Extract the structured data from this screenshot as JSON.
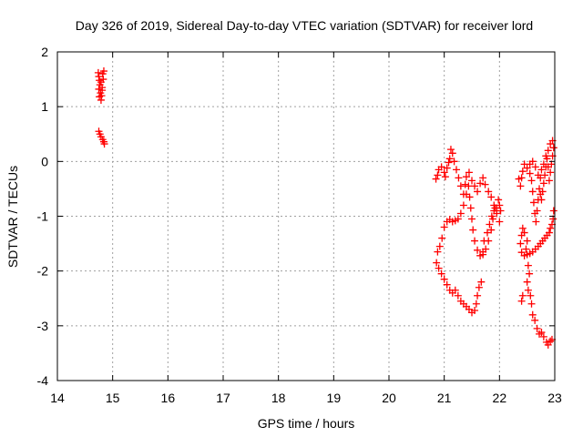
{
  "chart_data": {
    "type": "scatter",
    "title": "Day 326 of 2019, Sidereal Day-to-day VTEC variation (SDTVAR) for receiver lord",
    "xlabel": "GPS time / hours",
    "ylabel": "SDTVAR / TECUs",
    "xlim": [
      14,
      23
    ],
    "ylim": [
      -4,
      2
    ],
    "xticks": [
      "14",
      "15",
      "16",
      "17",
      "18",
      "19",
      "20",
      "21",
      "22",
      "23"
    ],
    "yticks": [
      "2",
      "1",
      "0",
      "-1",
      "-2",
      "-3",
      "-4"
    ],
    "grid": true,
    "marker": "plus",
    "color": "#ff0000",
    "series": [
      {
        "points": [
          [
            14.74,
            1.62
          ],
          [
            14.75,
            1.55
          ],
          [
            14.76,
            1.48
          ],
          [
            14.77,
            1.4
          ],
          [
            14.75,
            1.32
          ],
          [
            14.78,
            1.25
          ],
          [
            14.76,
            1.18
          ],
          [
            14.79,
            1.12
          ],
          [
            14.8,
            1.2
          ],
          [
            14.81,
            1.3
          ],
          [
            14.79,
            1.45
          ],
          [
            14.82,
            1.6
          ],
          [
            14.84,
            1.65
          ],
          [
            14.83,
            1.5
          ],
          [
            14.81,
            1.35
          ],
          [
            14.75,
            0.55
          ],
          [
            14.77,
            0.5
          ],
          [
            14.79,
            0.45
          ],
          [
            14.82,
            0.4
          ],
          [
            14.84,
            0.36
          ],
          [
            14.85,
            0.32
          ],
          [
            20.85,
            -0.32
          ],
          [
            20.88,
            -0.25
          ],
          [
            20.9,
            -0.15
          ],
          [
            20.95,
            -0.1
          ],
          [
            21.0,
            -0.2
          ],
          [
            21.02,
            -0.28
          ],
          [
            21.05,
            -0.12
          ],
          [
            21.08,
            -0.02
          ],
          [
            21.1,
            0.05
          ],
          [
            21.12,
            0.22
          ],
          [
            21.15,
            0.15
          ],
          [
            21.18,
            0.0
          ],
          [
            21.22,
            -0.15
          ],
          [
            21.26,
            -0.3
          ],
          [
            21.3,
            -0.45
          ],
          [
            21.35,
            -0.6
          ],
          [
            21.38,
            -0.42
          ],
          [
            21.4,
            -0.28
          ],
          [
            21.45,
            -0.2
          ],
          [
            21.5,
            -0.35
          ],
          [
            21.55,
            -0.45
          ],
          [
            21.6,
            -0.55
          ],
          [
            21.65,
            -0.4
          ],
          [
            21.7,
            -0.3
          ],
          [
            21.74,
            -0.42
          ],
          [
            21.8,
            -0.55
          ],
          [
            21.85,
            -0.65
          ],
          [
            21.9,
            -0.8
          ],
          [
            21.95,
            -0.95
          ],
          [
            22.0,
            -1.1
          ],
          [
            22.02,
            -0.9
          ],
          [
            21.98,
            -0.7
          ],
          [
            21.92,
            -0.85
          ],
          [
            21.88,
            -1.05
          ],
          [
            21.85,
            -1.25
          ],
          [
            21.8,
            -1.45
          ],
          [
            21.75,
            -1.6
          ],
          [
            21.7,
            -1.7
          ],
          [
            21.65,
            -1.72
          ],
          [
            21.6,
            -1.62
          ],
          [
            21.55,
            -1.45
          ],
          [
            21.52,
            -1.25
          ],
          [
            21.5,
            -1.05
          ],
          [
            21.48,
            -0.85
          ],
          [
            21.46,
            -0.65
          ],
          [
            21.44,
            -0.45
          ],
          [
            21.4,
            -0.6
          ],
          [
            21.35,
            -0.8
          ],
          [
            21.3,
            -0.95
          ],
          [
            21.25,
            -1.05
          ],
          [
            21.2,
            -1.08
          ],
          [
            21.15,
            -1.1
          ],
          [
            21.1,
            -1.06
          ],
          [
            21.05,
            -1.1
          ],
          [
            21.0,
            -1.2
          ],
          [
            20.96,
            -1.4
          ],
          [
            20.92,
            -1.55
          ],
          [
            20.88,
            -1.65
          ],
          [
            20.86,
            -1.85
          ],
          [
            20.9,
            -1.95
          ],
          [
            20.95,
            -2.05
          ],
          [
            21.0,
            -2.15
          ],
          [
            21.05,
            -2.25
          ],
          [
            21.1,
            -2.35
          ],
          [
            21.15,
            -2.4
          ],
          [
            21.2,
            -2.35
          ],
          [
            21.25,
            -2.45
          ],
          [
            21.3,
            -2.55
          ],
          [
            21.35,
            -2.6
          ],
          [
            21.4,
            -2.65
          ],
          [
            21.45,
            -2.7
          ],
          [
            21.5,
            -2.76
          ],
          [
            21.55,
            -2.72
          ],
          [
            21.58,
            -2.6
          ],
          [
            21.6,
            -2.45
          ],
          [
            21.63,
            -2.3
          ],
          [
            21.67,
            -2.2
          ],
          [
            21.7,
            -1.65
          ],
          [
            21.72,
            -1.45
          ],
          [
            21.78,
            -1.3
          ],
          [
            21.82,
            -1.15
          ],
          [
            21.86,
            -1.0
          ],
          [
            21.9,
            -0.9
          ],
          [
            21.95,
            -0.85
          ],
          [
            22.0,
            -0.8
          ],
          [
            22.35,
            -0.32
          ],
          [
            22.38,
            -0.45
          ],
          [
            22.4,
            -0.3
          ],
          [
            22.42,
            -0.18
          ],
          [
            22.45,
            -0.05
          ],
          [
            22.5,
            -0.12
          ],
          [
            22.55,
            -0.22
          ],
          [
            22.58,
            -0.35
          ],
          [
            22.6,
            -0.55
          ],
          [
            22.62,
            -0.75
          ],
          [
            22.64,
            -0.95
          ],
          [
            22.66,
            -1.1
          ],
          [
            22.68,
            -0.9
          ],
          [
            22.7,
            -0.7
          ],
          [
            22.72,
            -0.5
          ],
          [
            22.74,
            -0.3
          ],
          [
            22.76,
            -0.15
          ],
          [
            22.8,
            -0.05
          ],
          [
            22.84,
            0.1
          ],
          [
            22.88,
            0.2
          ],
          [
            22.92,
            0.32
          ],
          [
            22.96,
            0.38
          ],
          [
            22.98,
            0.25
          ],
          [
            22.96,
            0.1
          ],
          [
            22.94,
            -0.05
          ],
          [
            22.92,
            -0.2
          ],
          [
            22.9,
            -0.35
          ],
          [
            22.88,
            -0.1
          ],
          [
            22.86,
            0.05
          ],
          [
            22.84,
            -0.1
          ],
          [
            22.82,
            -0.25
          ],
          [
            22.8,
            -0.4
          ],
          [
            22.78,
            -0.55
          ],
          [
            22.76,
            -0.7
          ],
          [
            22.74,
            -0.6
          ],
          [
            22.98,
            -0.9
          ],
          [
            22.97,
            -1.05
          ],
          [
            22.95,
            -1.15
          ],
          [
            22.92,
            -1.22
          ],
          [
            22.9,
            -1.3
          ],
          [
            22.86,
            -1.35
          ],
          [
            22.82,
            -1.4
          ],
          [
            22.78,
            -1.45
          ],
          [
            22.74,
            -1.5
          ],
          [
            22.7,
            -1.55
          ],
          [
            22.65,
            -1.6
          ],
          [
            22.6,
            -1.65
          ],
          [
            22.55,
            -1.68
          ],
          [
            22.5,
            -1.7
          ],
          [
            22.45,
            -1.72
          ],
          [
            22.4,
            -1.66
          ],
          [
            22.38,
            -1.5
          ],
          [
            22.4,
            -1.35
          ],
          [
            22.42,
            -1.22
          ],
          [
            22.45,
            -1.3
          ],
          [
            22.5,
            -1.45
          ],
          [
            22.48,
            -1.6
          ],
          [
            22.52,
            -1.9
          ],
          [
            22.54,
            -2.05
          ],
          [
            22.5,
            -2.2
          ],
          [
            22.52,
            -2.35
          ],
          [
            22.56,
            -2.45
          ],
          [
            22.58,
            -2.6
          ],
          [
            22.6,
            -2.8
          ],
          [
            22.64,
            -2.9
          ],
          [
            22.68,
            -3.05
          ],
          [
            22.72,
            -3.15
          ],
          [
            22.76,
            -3.12
          ],
          [
            22.8,
            -3.2
          ],
          [
            22.85,
            -3.3
          ],
          [
            22.88,
            -3.35
          ],
          [
            22.92,
            -3.28
          ],
          [
            22.95,
            -3.25
          ],
          [
            22.4,
            -2.55
          ],
          [
            22.42,
            -2.45
          ],
          [
            22.55,
            -0.05
          ],
          [
            22.6,
            0.0
          ],
          [
            22.65,
            -0.1
          ],
          [
            22.7,
            -0.25
          ]
        ]
      }
    ]
  }
}
